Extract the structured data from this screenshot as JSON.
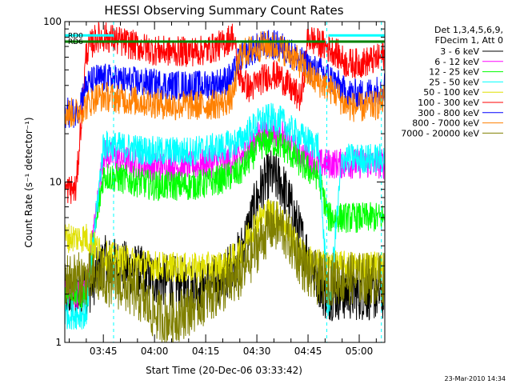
{
  "chart_data": {
    "type": "line",
    "title": "HESSI Observing Summary Count Rates",
    "xlabel": "Start Time (20-Dec-06 03:33:42)",
    "ylabel": "Count Rate (s⁻¹ detector⁻¹)",
    "y_scale": "log",
    "ylim": [
      1,
      100
    ],
    "xlim": [
      "03:33:42",
      "05:07:30"
    ],
    "x_ticks": [
      "03:45",
      "04:00",
      "04:15",
      "04:30",
      "04:45",
      "05:00"
    ],
    "y_tick_labels": [
      "1",
      "10",
      "100"
    ],
    "legend_header": [
      "Det 1,3,4,5,6,9,",
      "FDecim 1, Att 0"
    ],
    "legend_position": "right",
    "footer": "23-Mar-2010 14:34",
    "markers": [
      {
        "label": "RD0",
        "color": "#00ffff",
        "y": 82,
        "segments": [
          [
            "03:33:42",
            "03:48:00"
          ],
          [
            "04:51:00",
            "05:07:30"
          ]
        ]
      },
      {
        "label": "RD6",
        "color": "#008000",
        "y": 75,
        "segments": [
          [
            "03:33:42",
            "04:25:00"
          ],
          [
            "04:25:00",
            "04:50:00"
          ],
          [
            "04:51:00",
            "05:07:30"
          ]
        ]
      }
    ],
    "dashed_lines": [
      "03:48:00",
      "04:50:30",
      "05:06:30"
    ],
    "series": [
      {
        "name": "3 - 6 keV",
        "color": "#000000",
        "time": [
          "03:33:42",
          "03:36:00",
          "03:40:00",
          "03:45:00",
          "03:50:00",
          "03:55:00",
          "04:00:00",
          "04:05:00",
          "04:10:00",
          "04:15:00",
          "04:20:00",
          "04:25:00",
          "04:28:00",
          "04:31:00",
          "04:34:00",
          "04:37:00",
          "04:40:00",
          "04:43:00",
          "04:46:00",
          "04:48:00",
          "04:50:00",
          "04:55:00",
          "05:00:00",
          "05:05:00",
          "05:07:30"
        ],
        "values": [
          2.0,
          2.0,
          2.0,
          3.2,
          3.0,
          2.8,
          2.5,
          2.4,
          2.3,
          2.3,
          2.5,
          3.5,
          5.5,
          9,
          11,
          10,
          7,
          4.5,
          3.0,
          2.5,
          2.0,
          2.0,
          2.0,
          2.0,
          2.0
        ]
      },
      {
        "name": "6 - 12 keV",
        "color": "#ff00ff",
        "time": [
          "03:33:42",
          "03:40:00",
          "03:45:00",
          "03:50:00",
          "03:55:00",
          "04:00:00",
          "04:05:00",
          "04:10:00",
          "04:15:00",
          "04:20:00",
          "04:25:00",
          "04:28:00",
          "04:31:00",
          "04:34:00",
          "04:37:00",
          "04:40:00",
          "04:43:00",
          "04:46:00",
          "04:48:00",
          "04:51:00",
          "04:55:00",
          "05:00:00",
          "05:05:00",
          "05:07:30"
        ],
        "values": [
          2.0,
          2.0,
          15,
          14,
          13,
          12.5,
          12.5,
          12.5,
          13,
          13.5,
          14,
          17,
          20,
          21,
          20,
          17,
          15,
          14,
          13,
          13,
          13,
          13,
          13,
          13
        ]
      },
      {
        "name": "12 - 25 keV",
        "color": "#00ff00",
        "time": [
          "03:33:42",
          "03:40:00",
          "03:45:00",
          "03:50:00",
          "03:55:00",
          "04:00:00",
          "04:05:00",
          "04:10:00",
          "04:15:00",
          "04:20:00",
          "04:25:00",
          "04:28:00",
          "04:31:00",
          "04:34:00",
          "04:37:00",
          "04:40:00",
          "04:43:00",
          "04:46:00",
          "04:48:00",
          "04:51:00",
          "04:55:00",
          "05:00:00",
          "05:05:00",
          "05:07:30"
        ],
        "values": [
          2.0,
          2.0,
          11,
          10.5,
          10,
          9.5,
          9.5,
          9.5,
          9.8,
          10.5,
          11.5,
          14,
          17,
          18,
          17,
          15,
          13,
          11.5,
          11,
          6,
          6,
          6,
          6,
          6
        ]
      },
      {
        "name": "25 - 50 keV",
        "color": "#00ffff",
        "time": [
          "03:33:42",
          "03:40:00",
          "03:45:00",
          "03:50:00",
          "03:55:00",
          "04:00:00",
          "04:05:00",
          "04:10:00",
          "04:15:00",
          "04:20:00",
          "04:25:00",
          "04:28:00",
          "04:31:00",
          "04:34:00",
          "04:37:00",
          "04:40:00",
          "04:43:00",
          "04:46:00",
          "04:48:00",
          "04:51:00",
          "04:55:00",
          "05:00:00",
          "05:05:00",
          "05:07:30"
        ],
        "values": [
          1.5,
          1.5,
          17,
          16.5,
          16,
          15.5,
          15.5,
          15.5,
          16,
          16.5,
          18,
          21,
          24,
          25,
          24,
          21,
          19,
          17.5,
          17,
          1.5,
          14,
          14,
          14,
          14
        ]
      },
      {
        "name": "50 - 100 keV",
        "color": "#e0e000",
        "time": [
          "03:33:42",
          "03:40:00",
          "03:45:00",
          "03:50:00",
          "04:00:00",
          "04:10:00",
          "04:20:00",
          "04:25:00",
          "04:28:00",
          "04:31:00",
          "04:34:00",
          "04:37:00",
          "04:40:00",
          "04:43:00",
          "04:46:00",
          "04:50:00",
          "04:55:00",
          "05:00:00",
          "05:07:30"
        ],
        "values": [
          4.5,
          4.5,
          3.5,
          3.3,
          3.0,
          2.9,
          3.0,
          3.6,
          5,
          6,
          6.5,
          6,
          4.6,
          3.6,
          3.2,
          3.0,
          3.0,
          3.0,
          3.0
        ]
      },
      {
        "name": "100 - 300 keV",
        "color": "#ff0000",
        "time": [
          "03:33:42",
          "03:37:00",
          "03:40:00",
          "03:43:00",
          "03:46:00",
          "03:50:00",
          "03:55:00",
          "04:00:00",
          "04:05:00",
          "04:10:00",
          "04:15:00",
          "04:20:00",
          "04:23:00",
          "04:25:00",
          "04:28:00",
          "04:31:00",
          "04:34:00",
          "04:37:00",
          "04:40:00",
          "04:43:00",
          "04:45:00",
          "04:47:00",
          "04:50:00",
          "04:53:00",
          "04:56:00",
          "05:00:00",
          "05:05:00",
          "05:07:30"
        ],
        "values": [
          9,
          9,
          65,
          80,
          80,
          75,
          70,
          66,
          65,
          65,
          66,
          72,
          82,
          45,
          38,
          43,
          47,
          45,
          38,
          33,
          80,
          75,
          70,
          65,
          55,
          55,
          58,
          62
        ]
      },
      {
        "name": "300 - 800 keV",
        "color": "#0000ff",
        "time": [
          "03:33:42",
          "03:37:00",
          "03:40:00",
          "03:43:00",
          "03:46:00",
          "03:50:00",
          "03:55:00",
          "04:00:00",
          "04:05:00",
          "04:10:00",
          "04:15:00",
          "04:20:00",
          "04:23:00",
          "04:25:00",
          "04:28:00",
          "04:31:00",
          "04:34:00",
          "04:37:00",
          "04:40:00",
          "04:43:00",
          "04:45:00",
          "04:47:00",
          "04:50:00",
          "04:53:00",
          "04:56:00",
          "05:00:00",
          "05:05:00",
          "05:07:30"
        ],
        "values": [
          27,
          27,
          40,
          44,
          44,
          43,
          42,
          41,
          40,
          40,
          40,
          42,
          46,
          60,
          65,
          70,
          72,
          70,
          64,
          56,
          52,
          50,
          47,
          42,
          36,
          35,
          37,
          40
        ]
      },
      {
        "name": "800 - 7000 keV",
        "color": "#ff8000",
        "time": [
          "03:33:42",
          "03:37:00",
          "03:40:00",
          "03:43:00",
          "03:46:00",
          "03:50:00",
          "03:55:00",
          "04:00:00",
          "04:05:00",
          "04:10:00",
          "04:15:00",
          "04:20:00",
          "04:23:00",
          "04:25:00",
          "04:28:00",
          "04:31:00",
          "04:34:00",
          "04:37:00",
          "04:40:00",
          "04:43:00",
          "04:45:00",
          "04:47:00",
          "04:50:00",
          "04:53:00",
          "04:56:00",
          "05:00:00",
          "05:05:00",
          "05:07:30"
        ],
        "values": [
          27,
          27,
          30,
          34,
          34,
          33,
          32,
          31,
          30,
          30,
          30,
          31,
          34,
          62,
          66,
          70,
          71,
          68,
          62,
          54,
          47,
          43,
          40,
          36,
          30,
          29,
          30,
          33
        ]
      },
      {
        "name": "7000 - 20000 keV",
        "color": "#808000",
        "time": [
          "03:33:42",
          "03:40:00",
          "03:45:00",
          "03:50:00",
          "03:55:00",
          "04:00:00",
          "04:05:00",
          "04:10:00",
          "04:15:00",
          "04:20:00",
          "04:25:00",
          "04:28:00",
          "04:31:00",
          "04:34:00",
          "04:37:00",
          "04:40:00",
          "04:43:00",
          "04:46:00",
          "04:50:00",
          "04:55:00",
          "05:00:00",
          "05:07:30"
        ],
        "values": [
          2.5,
          2.5,
          2.5,
          2.3,
          2.0,
          1.5,
          1.4,
          1.6,
          1.9,
          2.2,
          2.6,
          3.3,
          4.3,
          5.3,
          5.2,
          4.2,
          3.2,
          2.5,
          2.5,
          2.5,
          2.5,
          2.5
        ]
      }
    ]
  }
}
